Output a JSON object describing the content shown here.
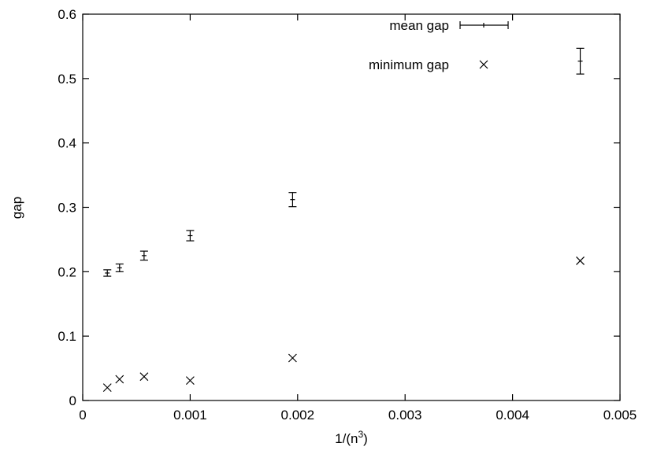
{
  "chart_data": {
    "type": "scatter",
    "xlabel": "1/(n",
    "xlabel_sup": "3",
    "xlabel_suffix": ")",
    "ylabel": "gap",
    "xlim": [
      0,
      0.005
    ],
    "ylim": [
      0,
      0.6
    ],
    "xticks": [
      0,
      0.001,
      0.002,
      0.003,
      0.004,
      0.005
    ],
    "xtick_labels": [
      "0",
      "0.001",
      "0.002",
      "0.003",
      "0.004",
      "0.005"
    ],
    "yticks": [
      0,
      0.1,
      0.2,
      0.3,
      0.4,
      0.5,
      0.6
    ],
    "ytick_labels": [
      "0",
      "0.1",
      "0.2",
      "0.3",
      "0.4",
      "0.5",
      "0.6"
    ],
    "grid": false,
    "legend_position": "top-right",
    "series": [
      {
        "name": "mean gap",
        "style": "errorbars",
        "points": [
          {
            "x": 0.000229,
            "y": 0.198,
            "err": 0.005
          },
          {
            "x": 0.000343,
            "y": 0.206,
            "err": 0.006
          },
          {
            "x": 0.000571,
            "y": 0.225,
            "err": 0.007
          },
          {
            "x": 0.001,
            "y": 0.256,
            "err": 0.008
          },
          {
            "x": 0.001953,
            "y": 0.312,
            "err": 0.011
          },
          {
            "x": 0.00463,
            "y": 0.527,
            "err": 0.02
          }
        ]
      },
      {
        "name": "minimum gap",
        "style": "x-marker",
        "points": [
          {
            "x": 0.000229,
            "y": 0.02
          },
          {
            "x": 0.000343,
            "y": 0.033
          },
          {
            "x": 0.000571,
            "y": 0.037
          },
          {
            "x": 0.001,
            "y": 0.031
          },
          {
            "x": 0.001953,
            "y": 0.066
          },
          {
            "x": 0.00463,
            "y": 0.217
          }
        ]
      }
    ]
  }
}
